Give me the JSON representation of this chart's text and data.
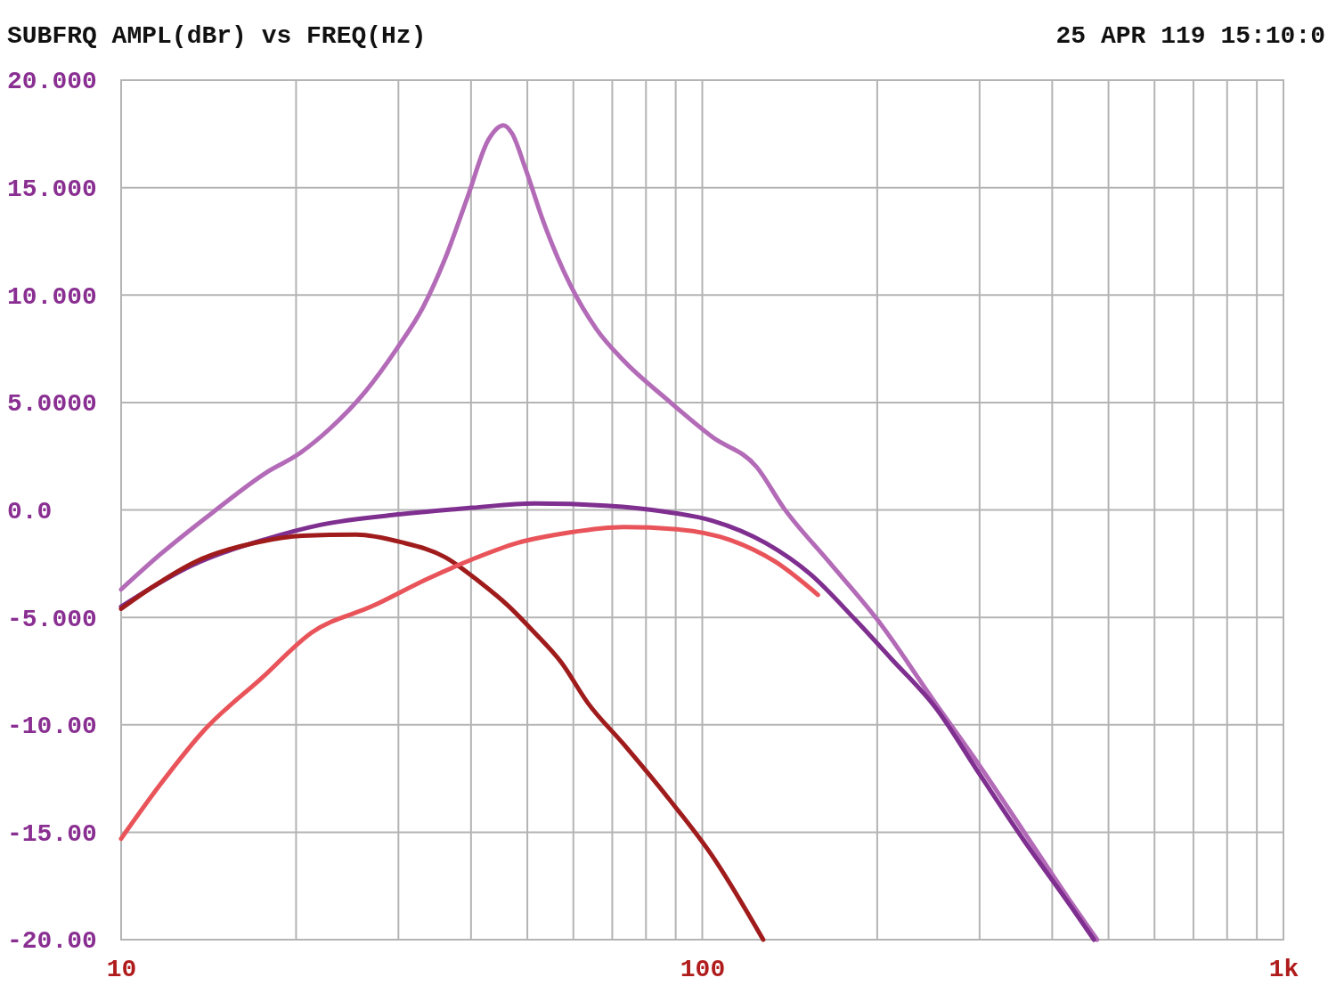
{
  "chart_data": {
    "type": "line",
    "title": "SUBFRQ AMPL(dBr) vs FREQ(Hz)",
    "annotations": [
      "25 APR 119 15:10:0"
    ],
    "log": "x",
    "grid": true,
    "line_style": "solid",
    "marker": "none",
    "xlim": [
      10,
      1000
    ],
    "ylim": [
      -20,
      20
    ],
    "xticks": [
      10,
      {
        "value": 20,
        "label": null
      },
      {
        "value": 30,
        "label": null
      },
      {
        "value": 40,
        "label": null
      },
      {
        "value": 50,
        "label": null
      },
      {
        "value": 60,
        "label": null
      },
      {
        "value": 70,
        "label": null
      },
      {
        "value": 80,
        "label": null
      },
      {
        "value": 90,
        "label": null
      },
      100,
      {
        "value": 200,
        "label": null
      },
      {
        "value": 300,
        "label": null
      },
      {
        "value": 400,
        "label": null
      },
      {
        "value": 500,
        "label": null
      },
      {
        "value": 600,
        "label": null
      },
      {
        "value": 700,
        "label": null
      },
      {
        "value": 800,
        "label": null
      },
      {
        "value": 900,
        "label": null
      },
      {
        "value": 1000,
        "label": "1k"
      }
    ],
    "yticks": [
      {
        "value": 20,
        "label": "20.000"
      },
      {
        "value": 15,
        "label": "15.000"
      },
      {
        "value": 10,
        "label": "10.000"
      },
      {
        "value": 5,
        "label": "5.0000"
      },
      {
        "value": 0,
        "label": "0.0"
      },
      {
        "value": -5,
        "label": "-5.000"
      },
      {
        "value": -10,
        "label": "-10.00"
      },
      {
        "value": -15,
        "label": "-15.00"
      },
      {
        "value": -20,
        "label": "-20.00"
      }
    ],
    "series": [
      {
        "color": "#b36bb8",
        "x": [
          10,
          11.7,
          14.4,
          17.8,
          20.2,
          22.8,
          26.3,
          29.8,
          33.1,
          36.1,
          39.5,
          42.8,
          45.5,
          47.1,
          49.6,
          53.3,
          59.2,
          65.8,
          73.2,
          87.3,
          104,
          124,
          138,
          165,
          200,
          252,
          300,
          358,
          427,
          478
        ],
        "values": [
          -3.7,
          -2.05,
          -0.1,
          1.75,
          2.6,
          3.75,
          5.5,
          7.5,
          9.45,
          11.7,
          14.6,
          17.2,
          17.9,
          17.5,
          15.9,
          13.4,
          10.5,
          8.4,
          6.95,
          5.1,
          3.4,
          2.0,
          0.1,
          -2.4,
          -5.1,
          -9.0,
          -11.9,
          -15.0,
          -18.1,
          -20
        ]
      },
      {
        "color": "#7f2f8f",
        "x": [
          10,
          13.2,
          17.8,
          22.0,
          30.3,
          40.2,
          51.4,
          68.2,
          87.3,
          104,
          128.7,
          153.6,
          183.2,
          211,
          252,
          300,
          358,
          427,
          472
        ],
        "values": [
          -4.5,
          -2.6,
          -1.35,
          -0.7,
          -0.2,
          0.1,
          0.3,
          0.2,
          -0.1,
          -0.5,
          -1.55,
          -3.0,
          -5.1,
          -6.9,
          -9.2,
          -12.3,
          -15.4,
          -18.3,
          -20
        ]
      },
      {
        "color": "#a01c1c",
        "x": [
          10,
          11.3,
          13.45,
          17.2,
          20.5,
          25.4,
          30.3,
          36.1,
          41.6,
          46.3,
          51.4,
          57.2,
          63.6,
          73.2,
          87.3,
          104,
          127.3
        ],
        "values": [
          -4.6,
          -3.6,
          -2.4,
          -1.5,
          -1.2,
          -1.15,
          -1.5,
          -2.2,
          -3.4,
          -4.45,
          -5.7,
          -7.1,
          -9.0,
          -10.9,
          -13.4,
          -16.1,
          -20
        ]
      },
      {
        "color": "#e8545a",
        "x": [
          10,
          11.7,
          13.9,
          17.5,
          21.3,
          27.2,
          33.7,
          40.2,
          47.9,
          59.2,
          73.2,
          90.4,
          111.8,
          133.4,
          158.1
        ],
        "values": [
          -15.3,
          -12.75,
          -10.25,
          -7.8,
          -5.7,
          -4.45,
          -3.2,
          -2.3,
          -1.55,
          -1.05,
          -0.8,
          -0.9,
          -1.4,
          -2.4,
          -3.95
        ]
      }
    ]
  }
}
